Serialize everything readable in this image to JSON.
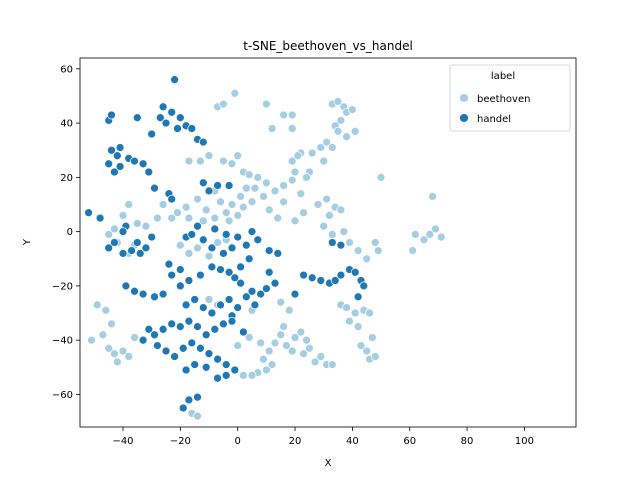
{
  "chart_data": {
    "type": "scatter",
    "title": "t-SNE_beethoven_vs_handel",
    "xlabel": "X",
    "ylabel": "Y",
    "xlim": [
      -55,
      118
    ],
    "ylim": [
      -72,
      64
    ],
    "xticks": [
      -40,
      -20,
      0,
      20,
      40,
      60,
      80,
      100
    ],
    "yticks": [
      -60,
      -40,
      -20,
      0,
      20,
      40,
      60
    ],
    "xtick_labels": [
      "−40",
      "−20",
      "0",
      "20",
      "40",
      "60",
      "80",
      "100"
    ],
    "ytick_labels": [
      "−60",
      "−40",
      "−20",
      "0",
      "20",
      "40",
      "60"
    ],
    "grid": false,
    "legend": {
      "title": "label",
      "placement": "top-right",
      "entries": [
        "beethoven",
        "handel"
      ]
    },
    "colors": {
      "beethoven": "#a6cee3",
      "handel": "#1f78b4"
    },
    "series": [
      {
        "name": "beethoven",
        "color": "#a6cee3",
        "points": [
          [
            -1,
            51
          ],
          [
            -7,
            46
          ],
          [
            -5,
            47
          ],
          [
            10,
            47
          ],
          [
            16,
            43
          ],
          [
            19,
            43
          ],
          [
            19,
            38
          ],
          [
            12,
            38
          ],
          [
            33,
            47
          ],
          [
            35,
            48
          ],
          [
            37,
            46
          ],
          [
            38,
            44
          ],
          [
            40,
            45
          ],
          [
            36,
            41
          ],
          [
            34,
            39
          ],
          [
            35,
            37
          ],
          [
            38,
            35
          ],
          [
            41,
            37
          ],
          [
            31,
            33
          ],
          [
            29,
            31
          ],
          [
            33,
            31
          ],
          [
            26,
            29
          ],
          [
            22,
            29
          ],
          [
            21,
            28
          ],
          [
            19,
            26
          ],
          [
            30,
            26
          ],
          [
            25,
            22
          ],
          [
            20,
            22
          ],
          [
            -17,
            26
          ],
          [
            -13,
            26
          ],
          [
            -10,
            28
          ],
          [
            -5,
            26
          ],
          [
            -2,
            25
          ],
          [
            0,
            28
          ],
          [
            2,
            22
          ],
          [
            4,
            21
          ],
          [
            7,
            20
          ],
          [
            10,
            18
          ],
          [
            13,
            15
          ],
          [
            16,
            17
          ],
          [
            19,
            19
          ],
          [
            22,
            14
          ],
          [
            24,
            20
          ],
          [
            9,
            13
          ],
          [
            5,
            11
          ],
          [
            3,
            16
          ],
          [
            1,
            13
          ],
          [
            -2,
            10
          ],
          [
            -4,
            7
          ],
          [
            -6,
            11
          ],
          [
            -8,
            15
          ],
          [
            -11,
            8
          ],
          [
            -14,
            12
          ],
          [
            -18,
            9
          ],
          [
            -21,
            7
          ],
          [
            -23,
            5
          ],
          [
            -17,
            5
          ],
          [
            -12,
            4
          ],
          [
            -8,
            5
          ],
          [
            -3,
            4
          ],
          [
            0,
            6
          ],
          [
            2,
            9
          ],
          [
            6,
            16
          ],
          [
            11,
            8
          ],
          [
            14,
            5
          ],
          [
            16,
            11
          ],
          [
            20,
            4
          ],
          [
            23,
            7
          ],
          [
            28,
            10
          ],
          [
            31,
            12
          ],
          [
            34,
            9
          ],
          [
            36,
            8
          ],
          [
            32,
            6
          ],
          [
            30,
            2
          ],
          [
            33,
            -1
          ],
          [
            37,
            0
          ],
          [
            39,
            -4
          ],
          [
            42,
            -7
          ],
          [
            45,
            -10
          ],
          [
            48,
            -4
          ],
          [
            50,
            20
          ],
          [
            49,
            -7
          ],
          [
            -26,
            10
          ],
          [
            -28,
            5
          ],
          [
            -32,
            2
          ],
          [
            -35,
            3
          ],
          [
            -38,
            10
          ],
          [
            -40,
            6
          ],
          [
            -43,
            1
          ],
          [
            -45,
            -1
          ],
          [
            -42,
            -4
          ],
          [
            -38,
            -8
          ],
          [
            -36,
            -5
          ],
          [
            -20,
            -5
          ],
          [
            -17,
            -8
          ],
          [
            -14,
            -6
          ],
          [
            -10,
            -9
          ],
          [
            -7,
            -4
          ],
          [
            -4,
            -3
          ],
          [
            62,
            -1
          ],
          [
            65,
            -3
          ],
          [
            67,
            -1
          ],
          [
            69,
            1
          ],
          [
            71,
            -2
          ],
          [
            68,
            13
          ],
          [
            61,
            -7
          ],
          [
            -49,
            -27
          ],
          [
            -46,
            -29
          ],
          [
            -44,
            -34
          ],
          [
            -47,
            -38
          ],
          [
            -45,
            -43
          ],
          [
            -43,
            -45
          ],
          [
            -40,
            -44
          ],
          [
            -42,
            -48
          ],
          [
            -38,
            -46
          ],
          [
            -51,
            -40
          ],
          [
            -36,
            -39
          ],
          [
            36,
            -27
          ],
          [
            38,
            -28
          ],
          [
            41,
            -30
          ],
          [
            44,
            -29
          ],
          [
            46,
            -30
          ],
          [
            39,
            -33
          ],
          [
            42,
            -35
          ],
          [
            47,
            -39
          ],
          [
            45,
            -44
          ],
          [
            46,
            -47
          ],
          [
            48,
            -46
          ],
          [
            43,
            -42
          ],
          [
            20,
            -39
          ],
          [
            22,
            -37
          ],
          [
            24,
            -40
          ],
          [
            19,
            -44
          ],
          [
            17,
            -42
          ],
          [
            15,
            -38
          ],
          [
            13,
            -41
          ],
          [
            11,
            -44
          ],
          [
            9,
            -47
          ],
          [
            12,
            -49
          ],
          [
            10,
            -51
          ],
          [
            7,
            -52
          ],
          [
            5,
            -53
          ],
          [
            2,
            -53
          ],
          [
            27,
            -48
          ],
          [
            31,
            -49
          ],
          [
            33,
            -49
          ],
          [
            23,
            -45
          ],
          [
            25,
            -43
          ],
          [
            29,
            -46
          ],
          [
            16,
            -35
          ],
          [
            18,
            -29
          ],
          [
            15,
            -26
          ],
          [
            -16,
            -67
          ],
          [
            -14,
            -68
          ],
          [
            -10,
            -25
          ],
          [
            -7,
            -27
          ],
          [
            5,
            -29
          ],
          [
            4,
            -39
          ],
          [
            8,
            -41
          ],
          [
            0,
            -42
          ]
        ]
      },
      {
        "name": "handel",
        "color": "#1f78b4",
        "points": [
          [
            -22,
            56
          ],
          [
            -26,
            46
          ],
          [
            -23,
            44
          ],
          [
            -20,
            42
          ],
          [
            -18,
            39
          ],
          [
            -21,
            38
          ],
          [
            -25,
            40
          ],
          [
            -27,
            42
          ],
          [
            -30,
            36
          ],
          [
            -35,
            42
          ],
          [
            -16,
            38
          ],
          [
            -14,
            34
          ],
          [
            -12,
            33
          ],
          [
            -45,
            41
          ],
          [
            -44,
            43
          ],
          [
            -41,
            31
          ],
          [
            -42,
            28
          ],
          [
            -44,
            30
          ],
          [
            -45,
            25
          ],
          [
            -43,
            22
          ],
          [
            -41,
            24
          ],
          [
            -38,
            27
          ],
          [
            -36,
            26
          ],
          [
            -33,
            25
          ],
          [
            -31,
            22
          ],
          [
            -29,
            16
          ],
          [
            -24,
            14
          ],
          [
            -23,
            12
          ],
          [
            -52,
            7
          ],
          [
            -48,
            5
          ],
          [
            -39,
            2
          ],
          [
            -40,
            0
          ],
          [
            -43,
            -4
          ],
          [
            -45,
            -6
          ],
          [
            -40,
            -8
          ],
          [
            -37,
            -7
          ],
          [
            -35,
            -4
          ],
          [
            -32,
            -6
          ],
          [
            -34,
            -8
          ],
          [
            -30,
            -2
          ],
          [
            -18,
            -2
          ],
          [
            -16,
            -1
          ],
          [
            -12,
            -3
          ],
          [
            -9,
            -6
          ],
          [
            -5,
            -8
          ],
          [
            -2,
            -6
          ],
          [
            0,
            -2
          ],
          [
            3,
            -5
          ],
          [
            7,
            -3
          ],
          [
            11,
            -7
          ],
          [
            14,
            -8
          ],
          [
            4,
            -10
          ],
          [
            1,
            -13
          ],
          [
            -3,
            -15
          ],
          [
            -6,
            -14
          ],
          [
            -9,
            -13
          ],
          [
            -13,
            -16
          ],
          [
            -17,
            -18
          ],
          [
            -20,
            -20
          ],
          [
            -23,
            -16
          ],
          [
            -26,
            -23
          ],
          [
            -29,
            -24
          ],
          [
            -33,
            -23
          ],
          [
            -36,
            -22
          ],
          [
            -39,
            -20
          ],
          [
            -14,
            2
          ],
          [
            -8,
            1
          ],
          [
            -4,
            -1
          ],
          [
            -10,
            15
          ],
          [
            -12,
            18
          ],
          [
            -7,
            17
          ],
          [
            -3,
            17
          ],
          [
            5,
            0
          ],
          [
            -18,
            -27
          ],
          [
            -15,
            -25
          ],
          [
            -12,
            -28
          ],
          [
            -9,
            -30
          ],
          [
            -6,
            -27
          ],
          [
            -3,
            -25
          ],
          [
            0,
            -28
          ],
          [
            -2,
            -31
          ],
          [
            -5,
            -34
          ],
          [
            -8,
            -36
          ],
          [
            -11,
            -38
          ],
          [
            -14,
            -35
          ],
          [
            -17,
            -33
          ],
          [
            -20,
            -35
          ],
          [
            -23,
            -34
          ],
          [
            -26,
            -36
          ],
          [
            -29,
            -38
          ],
          [
            -31,
            -36
          ],
          [
            -33,
            -40
          ],
          [
            -28,
            -42
          ],
          [
            -25,
            -44
          ],
          [
            -22,
            -46
          ],
          [
            -19,
            -43
          ],
          [
            -16,
            -41
          ],
          [
            -13,
            -43
          ],
          [
            -10,
            -45
          ],
          [
            -7,
            -47
          ],
          [
            -4,
            -49
          ],
          [
            -1,
            -51
          ],
          [
            -4,
            -53
          ],
          [
            -7,
            -54
          ],
          [
            -11,
            -50
          ],
          [
            -15,
            -49
          ],
          [
            -18,
            -51
          ],
          [
            -2,
            -33
          ],
          [
            2,
            -37
          ],
          [
            -17,
            -62
          ],
          [
            -14,
            -61
          ],
          [
            -19,
            -65
          ],
          [
            10,
            -21
          ],
          [
            8,
            -23
          ],
          [
            5,
            -22
          ],
          [
            3,
            -24
          ],
          [
            1,
            -19
          ],
          [
            -1,
            -17
          ],
          [
            6,
            -27
          ],
          [
            -20,
            -14
          ],
          [
            -24,
            -12
          ],
          [
            23,
            -16
          ],
          [
            26,
            -17
          ],
          [
            29,
            -18
          ],
          [
            32,
            -19
          ],
          [
            34,
            -18
          ],
          [
            36,
            -16
          ],
          [
            39,
            -14
          ],
          [
            41,
            -15
          ],
          [
            43,
            -18
          ],
          [
            44,
            -20
          ],
          [
            42,
            -24
          ],
          [
            20,
            -23
          ],
          [
            13,
            -19
          ],
          [
            11,
            -15
          ],
          [
            33,
            -4
          ],
          [
            36,
            -5
          ]
        ]
      }
    ]
  }
}
